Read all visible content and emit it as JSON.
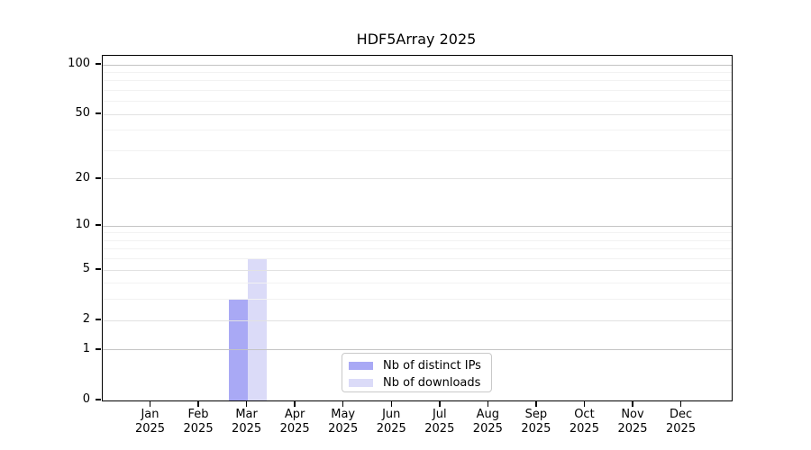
{
  "chart_data": {
    "type": "bar",
    "title": "HDF5Array 2025",
    "categories": [
      "Jan",
      "Feb",
      "Mar",
      "Apr",
      "May",
      "Jun",
      "Jul",
      "Aug",
      "Sep",
      "Oct",
      "Nov",
      "Dec"
    ],
    "year": "2025",
    "series": [
      {
        "name": "Nb of distinct IPs",
        "color": "#a9a9f5",
        "values": [
          0,
          0,
          3,
          0,
          0,
          0,
          0,
          0,
          0,
          0,
          0,
          0
        ]
      },
      {
        "name": "Nb of downloads",
        "color": "#dbdbf8",
        "values": [
          0,
          0,
          6,
          0,
          0,
          0,
          0,
          0,
          0,
          0,
          0,
          0
        ]
      }
    ],
    "y_axis": {
      "scale": "log1p",
      "tick_values": [
        0,
        1,
        2,
        5,
        10,
        20,
        50,
        100
      ],
      "decade_gridlines": [
        1,
        10,
        100
      ],
      "minor_gridlines": [
        3,
        4,
        6,
        7,
        8,
        9,
        30,
        40,
        60,
        70,
        80,
        90
      ],
      "top_value": 100
    },
    "legend_position": "bottom-center",
    "grid": true,
    "colors": {
      "decade_grid": "#c4c4c4",
      "major_grid": "#e2e2e2",
      "minor_grid": "#f2f2f2",
      "axis": "#000000",
      "background": "#ffffff"
    }
  }
}
